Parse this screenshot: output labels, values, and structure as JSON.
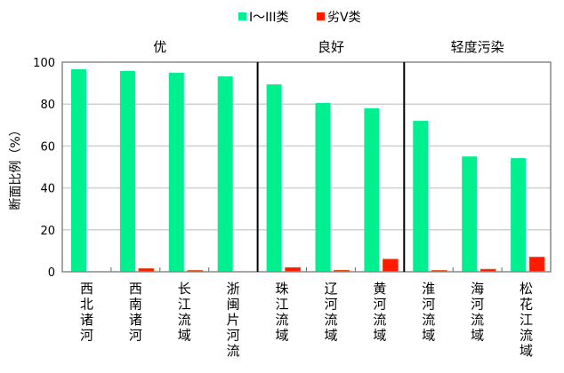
{
  "chart_data": {
    "type": "bar",
    "ylabel": "断面比例（%）",
    "ylim": [
      0,
      100
    ],
    "yticks": [
      0,
      20,
      40,
      60,
      80,
      100
    ],
    "grid": true,
    "legend_placement": "top-center",
    "categories": [
      "西北诸河",
      "西南诸河",
      "长江流域",
      "浙闽片河流",
      "珠江流域",
      "辽河流域",
      "黄河流域",
      "淮河流域",
      "海河流域",
      "松花江流域"
    ],
    "groups": [
      {
        "label": "优",
        "count": 4
      },
      {
        "label": "良好",
        "count": 3
      },
      {
        "label": "轻度污染",
        "count": 3
      }
    ],
    "series": [
      {
        "name": "I～III类",
        "color": "#00F090",
        "values": [
          96.6,
          95.8,
          94.9,
          93.2,
          89.4,
          80.5,
          78.0,
          72.0,
          55.0,
          54.2
        ]
      },
      {
        "name": "劣V类",
        "color": "#FF1A00",
        "values": [
          0,
          1.5,
          0.5,
          0,
          2.0,
          0.7,
          6.0,
          0.3,
          1.2,
          7.0
        ]
      }
    ]
  }
}
